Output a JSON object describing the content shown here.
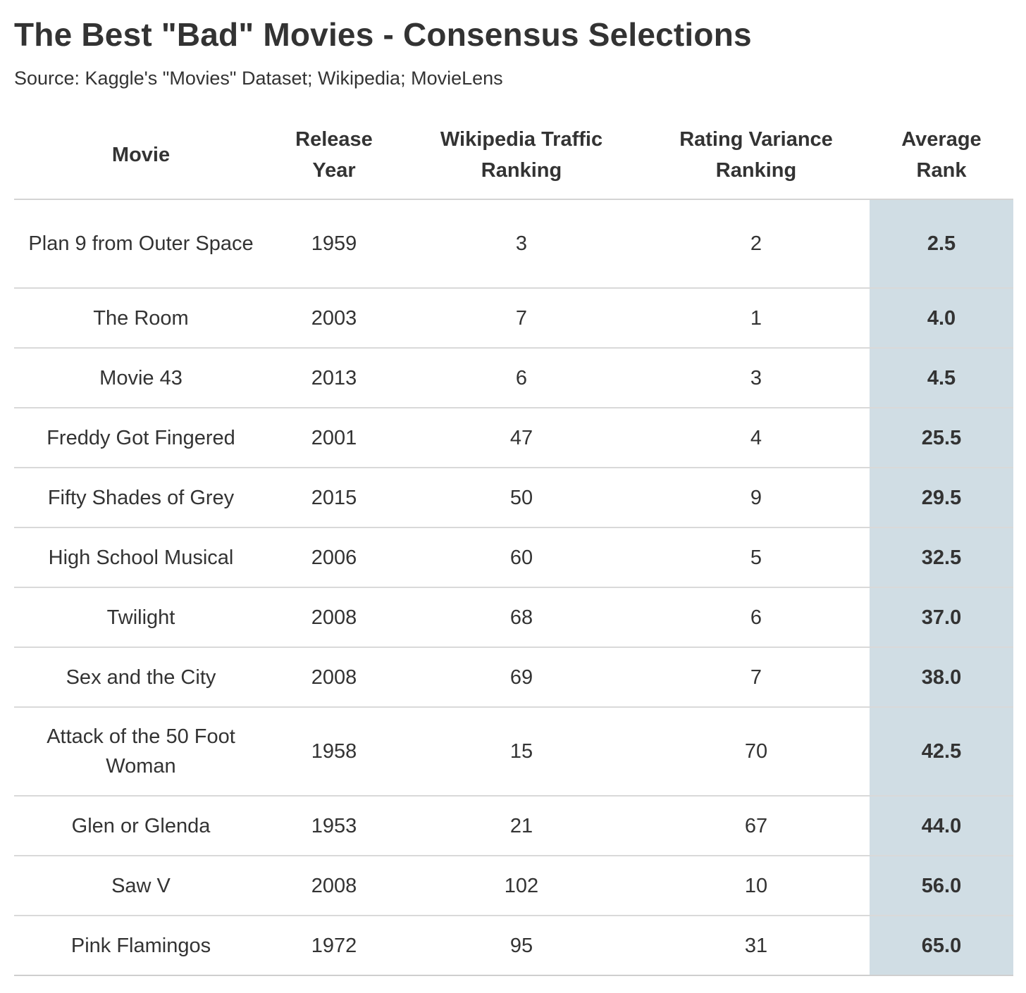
{
  "title": "The Best \"Bad\" Movies - Consensus Selections",
  "subtitle": "Source: Kaggle's \"Movies\" Dataset; Wikipedia; MovieLens",
  "colors": {
    "highlight_column": "#d0dde4",
    "text": "#333333",
    "divider": "#d9d9d9"
  },
  "chart_data": {
    "type": "table",
    "title": "The Best \"Bad\" Movies - Consensus Selections",
    "subtitle": "Source: Kaggle's \"Movies\" Dataset; Wikipedia; MovieLens",
    "columns": [
      "Movie",
      "Release Year",
      "Wikipedia Traffic Ranking",
      "Rating Variance Ranking",
      "Average Rank"
    ],
    "rows": [
      [
        "Plan 9 from Outer Space",
        "1959",
        "3",
        "2",
        "2.5"
      ],
      [
        "The Room",
        "2003",
        "7",
        "1",
        "4.0"
      ],
      [
        "Movie 43",
        "2013",
        "6",
        "3",
        "4.5"
      ],
      [
        "Freddy Got Fingered",
        "2001",
        "47",
        "4",
        "25.5"
      ],
      [
        "Fifty Shades of Grey",
        "2015",
        "50",
        "9",
        "29.5"
      ],
      [
        "High School Musical",
        "2006",
        "60",
        "5",
        "32.5"
      ],
      [
        "Twilight",
        "2008",
        "68",
        "6",
        "37.0"
      ],
      [
        "Sex and the City",
        "2008",
        "69",
        "7",
        "38.0"
      ],
      [
        "Attack of the 50 Foot Woman",
        "1958",
        "15",
        "70",
        "42.5"
      ],
      [
        "Glen or Glenda",
        "1953",
        "21",
        "67",
        "44.0"
      ],
      [
        "Saw V",
        "2008",
        "102",
        "10",
        "56.0"
      ],
      [
        "Pink Flamingos",
        "1972",
        "95",
        "31",
        "65.0"
      ]
    ],
    "highlighted_column": "Average Rank"
  }
}
